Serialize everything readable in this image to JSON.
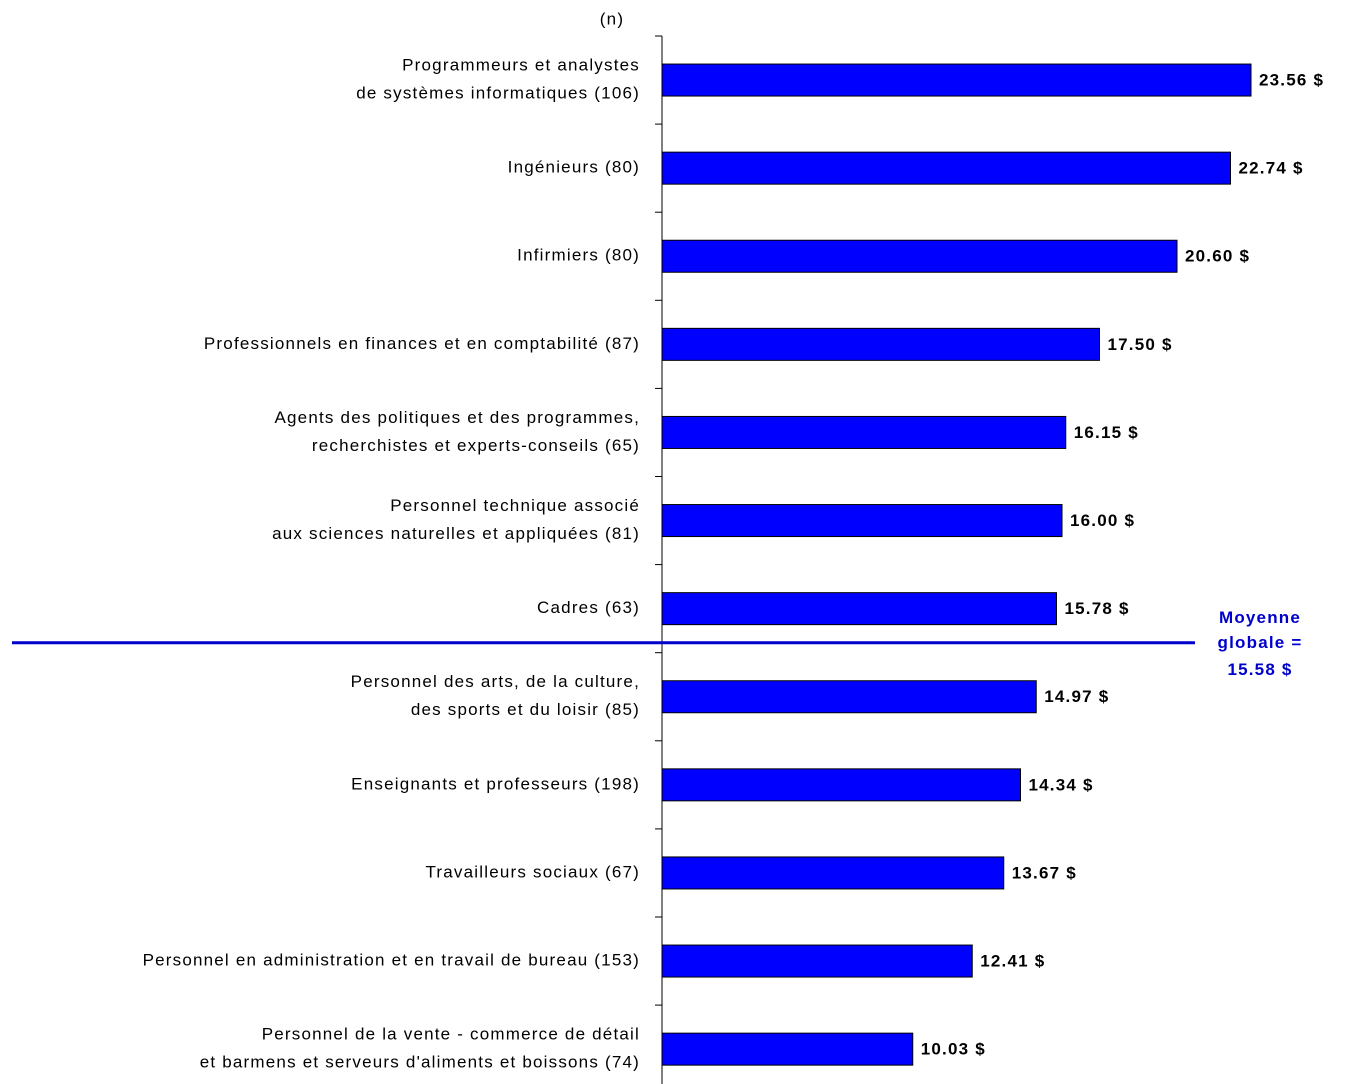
{
  "chart_data": {
    "type": "bar",
    "orientation": "horizontal",
    "axis_label": "(n)",
    "categories": [
      [
        "Programmeurs et analystes",
        "de systèmes informatiques (106)"
      ],
      [
        "Ingénieurs (80)"
      ],
      [
        "Infirmiers (80)"
      ],
      [
        "Professionnels en finances et en comptabilité (87)"
      ],
      [
        "Agents des politiques et des programmes,",
        "recherchistes et experts-conseils (65)"
      ],
      [
        "Personnel technique associé",
        "aux sciences naturelles et appliquées (81)"
      ],
      [
        "Cadres (63)"
      ],
      [
        "Personnel des arts, de la culture,",
        "des sports et du loisir (85)"
      ],
      [
        "Enseignants et professeurs (198)"
      ],
      [
        "Travailleurs sociaux (67)"
      ],
      [
        "Personnel en administration et en travail de bureau (153)"
      ],
      [
        "Personnel de la vente - commerce de détail",
        "et barmens et serveurs d'aliments et boissons (74)"
      ]
    ],
    "values": [
      23.56,
      22.74,
      20.6,
      17.5,
      16.15,
      16.0,
      15.78,
      14.97,
      14.34,
      13.67,
      12.41,
      10.03
    ],
    "value_labels": [
      "23.56 $",
      "22.74 $",
      "20.60 $",
      "17.50 $",
      "16.15 $",
      "16.00 $",
      "15.78 $",
      "14.97 $",
      "14.34 $",
      "13.67 $",
      "12.41 $",
      "10.03 $"
    ],
    "color": "#0000ff",
    "xlim": [
      0,
      27
    ],
    "average": {
      "lines": [
        "Moyenne",
        "globale ="
      ],
      "value": 15.58,
      "value_label": "15.58 $",
      "color": "#0000cc"
    }
  }
}
